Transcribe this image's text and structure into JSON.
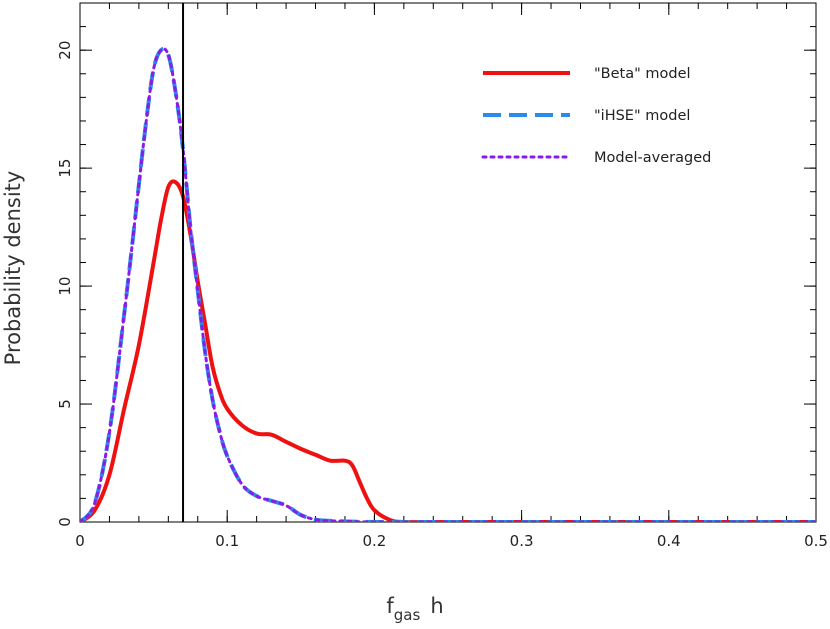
{
  "chart_data": {
    "type": "line",
    "xlabel": {
      "main": "f",
      "sub": "gas",
      "suffix": "h"
    },
    "ylabel": "Probability density",
    "xlim": [
      0,
      0.5
    ],
    "ylim": [
      0,
      22
    ],
    "xticks": [
      0,
      0.1,
      0.2,
      0.3,
      0.4,
      0.5
    ],
    "xtick_labels": [
      "0",
      "0.1",
      "0.2",
      "0.3",
      "0.4",
      "0.5"
    ],
    "yticks": [
      0,
      5,
      10,
      15,
      20
    ],
    "ytick_labels": [
      "0",
      "5",
      "10",
      "15",
      "20"
    ],
    "vline_x": 0.07,
    "grid": false,
    "legend_position": "top-right",
    "series": [
      {
        "name": "\"Beta\" model",
        "color": "#ee1111",
        "style": "solid",
        "x": [
          0,
          0.01,
          0.02,
          0.03,
          0.04,
          0.05,
          0.055,
          0.06,
          0.065,
          0.07,
          0.075,
          0.08,
          0.085,
          0.09,
          0.095,
          0.1,
          0.11,
          0.12,
          0.13,
          0.14,
          0.15,
          0.16,
          0.17,
          0.18,
          0.185,
          0.19,
          0.195,
          0.2,
          0.21,
          0.22,
          0.25,
          0.3,
          0.35,
          0.4,
          0.45,
          0.5
        ],
        "y": [
          0,
          0.5,
          2.0,
          4.8,
          7.5,
          11.0,
          12.8,
          14.2,
          14.4,
          13.8,
          12.2,
          10.2,
          8.4,
          6.6,
          5.5,
          4.8,
          4.1,
          3.75,
          3.7,
          3.4,
          3.1,
          2.85,
          2.6,
          2.6,
          2.4,
          1.7,
          1.0,
          0.5,
          0.1,
          0,
          0,
          0,
          0,
          0,
          0,
          0
        ]
      },
      {
        "name": "\"iHSE\" model",
        "color": "#2a8ce8",
        "style": "dashed",
        "x": [
          0,
          0.01,
          0.02,
          0.03,
          0.035,
          0.04,
          0.045,
          0.05,
          0.055,
          0.06,
          0.065,
          0.07,
          0.075,
          0.08,
          0.085,
          0.09,
          0.095,
          0.1,
          0.11,
          0.12,
          0.13,
          0.14,
          0.15,
          0.16,
          0.17,
          0.2,
          0.25,
          0.3,
          0.35,
          0.4,
          0.45,
          0.5
        ],
        "y": [
          0,
          0.8,
          3.8,
          8.8,
          11.5,
          14.3,
          17.0,
          19.2,
          20.0,
          19.8,
          18.2,
          15.8,
          12.5,
          9.8,
          7.2,
          5.2,
          3.8,
          2.8,
          1.6,
          1.1,
          0.9,
          0.7,
          0.3,
          0.1,
          0.05,
          0,
          0,
          0,
          0,
          0,
          0,
          0
        ]
      },
      {
        "name": "Model-averaged",
        "color": "#8a1be8",
        "style": "dotted",
        "x": [
          0,
          0.01,
          0.02,
          0.03,
          0.035,
          0.04,
          0.045,
          0.05,
          0.055,
          0.06,
          0.065,
          0.07,
          0.075,
          0.08,
          0.085,
          0.09,
          0.095,
          0.1,
          0.11,
          0.12,
          0.13,
          0.14,
          0.15,
          0.16,
          0.17,
          0.2,
          0.25,
          0.3,
          0.35,
          0.4,
          0.45,
          0.5
        ],
        "y": [
          0,
          0.8,
          3.8,
          8.8,
          11.5,
          14.3,
          17.0,
          19.2,
          20.0,
          19.8,
          18.2,
          15.8,
          12.5,
          9.8,
          7.2,
          5.2,
          3.8,
          2.8,
          1.6,
          1.1,
          0.9,
          0.7,
          0.3,
          0.1,
          0.05,
          0,
          0,
          0,
          0,
          0,
          0,
          0
        ]
      }
    ]
  }
}
